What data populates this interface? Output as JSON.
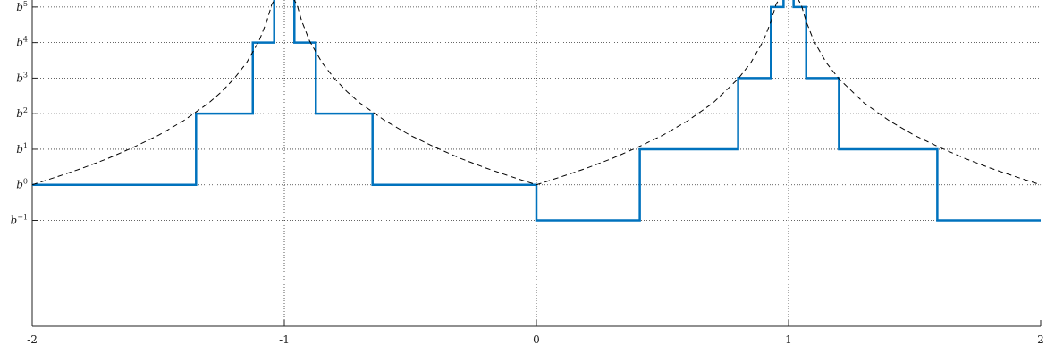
{
  "chart_data": {
    "type": "line",
    "title": "",
    "xlabel": "",
    "ylabel": "",
    "xlim": [
      -2,
      2
    ],
    "ylim": [
      -3.2,
      5.6
    ],
    "grid": true,
    "x_ticks": [
      {
        "value": -2,
        "label": "-2"
      },
      {
        "value": -1,
        "label": "-1"
      },
      {
        "value": 0,
        "label": "0"
      },
      {
        "value": 1,
        "label": "1"
      },
      {
        "value": 2,
        "label": "2"
      }
    ],
    "y_ticks": [
      {
        "value": -1,
        "base": "b",
        "exp": "−1"
      },
      {
        "value": 0,
        "base": "b",
        "exp": "0"
      },
      {
        "value": 1,
        "base": "b",
        "exp": "1"
      },
      {
        "value": 2,
        "base": "b",
        "exp": "2"
      },
      {
        "value": 3,
        "base": "b",
        "exp": "3"
      },
      {
        "value": 4,
        "base": "b",
        "exp": "4"
      },
      {
        "value": 5,
        "base": "b",
        "exp": "5"
      }
    ],
    "y_scale": "log base b",
    "colors": {
      "step": "#0072bd",
      "curve": "#000000",
      "grid": "#333333"
    },
    "series": [
      {
        "style": "solid",
        "kind": "step",
        "x": [
          -2,
          -1.35,
          -1.35,
          -1.125,
          -1.125,
          -1.04,
          -1.04,
          -0.96,
          -0.96,
          -0.875,
          -0.875,
          -0.65,
          -0.65,
          0,
          0,
          0.41,
          0.41,
          0.8,
          0.8,
          0.93,
          0.93,
          0.98,
          0.98,
          1.02,
          1.02,
          1.07,
          1.07,
          1.2,
          1.2,
          1.59,
          1.59,
          2
        ],
        "y": [
          0,
          0,
          2,
          2,
          4,
          4,
          6,
          6,
          4,
          4,
          2,
          2,
          0,
          0,
          -1,
          -1,
          1,
          1,
          3,
          3,
          5,
          5,
          6,
          6,
          5,
          5,
          3,
          3,
          1,
          1,
          -1,
          -1
        ]
      },
      {
        "style": "dashed",
        "kind": "curve",
        "x": [
          -2,
          -1.9,
          -1.8,
          -1.7,
          -1.6,
          -1.5,
          -1.4,
          -1.3,
          -1.25,
          -1.2,
          -1.15,
          -1.1,
          -1.07,
          -1.05,
          -1.035,
          -0.965,
          -0.95,
          -0.93,
          -0.9,
          -0.85,
          -0.8,
          -0.75,
          -0.7,
          -0.6,
          -0.5,
          -0.4,
          -0.3,
          -0.2,
          -0.1,
          0,
          0.1,
          0.2,
          0.3,
          0.4,
          0.5,
          0.6,
          0.7,
          0.8,
          0.85,
          0.9,
          0.93,
          0.95,
          0.965,
          1.035,
          1.05,
          1.07,
          1.1,
          1.15,
          1.2,
          1.3,
          1.4,
          1.5,
          1.6,
          1.7,
          1.8,
          1.9,
          2
        ],
        "y": [
          0,
          0.23,
          0.47,
          0.74,
          1.05,
          1.39,
          1.8,
          2.3,
          2.61,
          2.98,
          3.43,
          4.05,
          4.59,
          5.07,
          5.6,
          5.6,
          5.07,
          4.59,
          4.05,
          3.43,
          2.98,
          2.61,
          2.3,
          1.8,
          1.39,
          1.05,
          0.74,
          0.47,
          0.23,
          0,
          0.23,
          0.47,
          0.74,
          1.05,
          1.39,
          1.8,
          2.3,
          2.98,
          3.43,
          4.05,
          4.59,
          5.07,
          5.6,
          5.6,
          5.07,
          4.59,
          4.05,
          3.43,
          2.98,
          2.3,
          1.8,
          1.39,
          1.05,
          0.74,
          0.47,
          0.23,
          0
        ]
      }
    ]
  }
}
